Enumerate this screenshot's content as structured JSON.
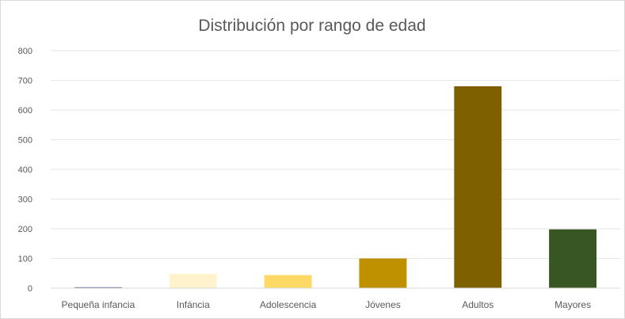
{
  "chart_data": {
    "type": "bar",
    "title": "Distribución por rango de edad",
    "xlabel": "",
    "ylabel": "",
    "categories": [
      "Pequeña infancia",
      "Infáncia",
      "Adolescencia",
      "Jóvenes",
      "Adultos",
      "Mayores"
    ],
    "values": [
      3,
      48,
      44,
      100,
      680,
      198
    ],
    "colors": [
      "#4a5a8a",
      "#fff2cc",
      "#ffd966",
      "#bf9000",
      "#7f6000",
      "#375623"
    ],
    "ylim": [
      0,
      800
    ],
    "yticks": [
      0,
      100,
      200,
      300,
      400,
      500,
      600,
      700,
      800
    ],
    "ytick_labels": [
      "0",
      "100",
      "200",
      "300",
      "400",
      "500",
      "600",
      "700",
      "800"
    ],
    "grid": true,
    "legend": "none"
  }
}
